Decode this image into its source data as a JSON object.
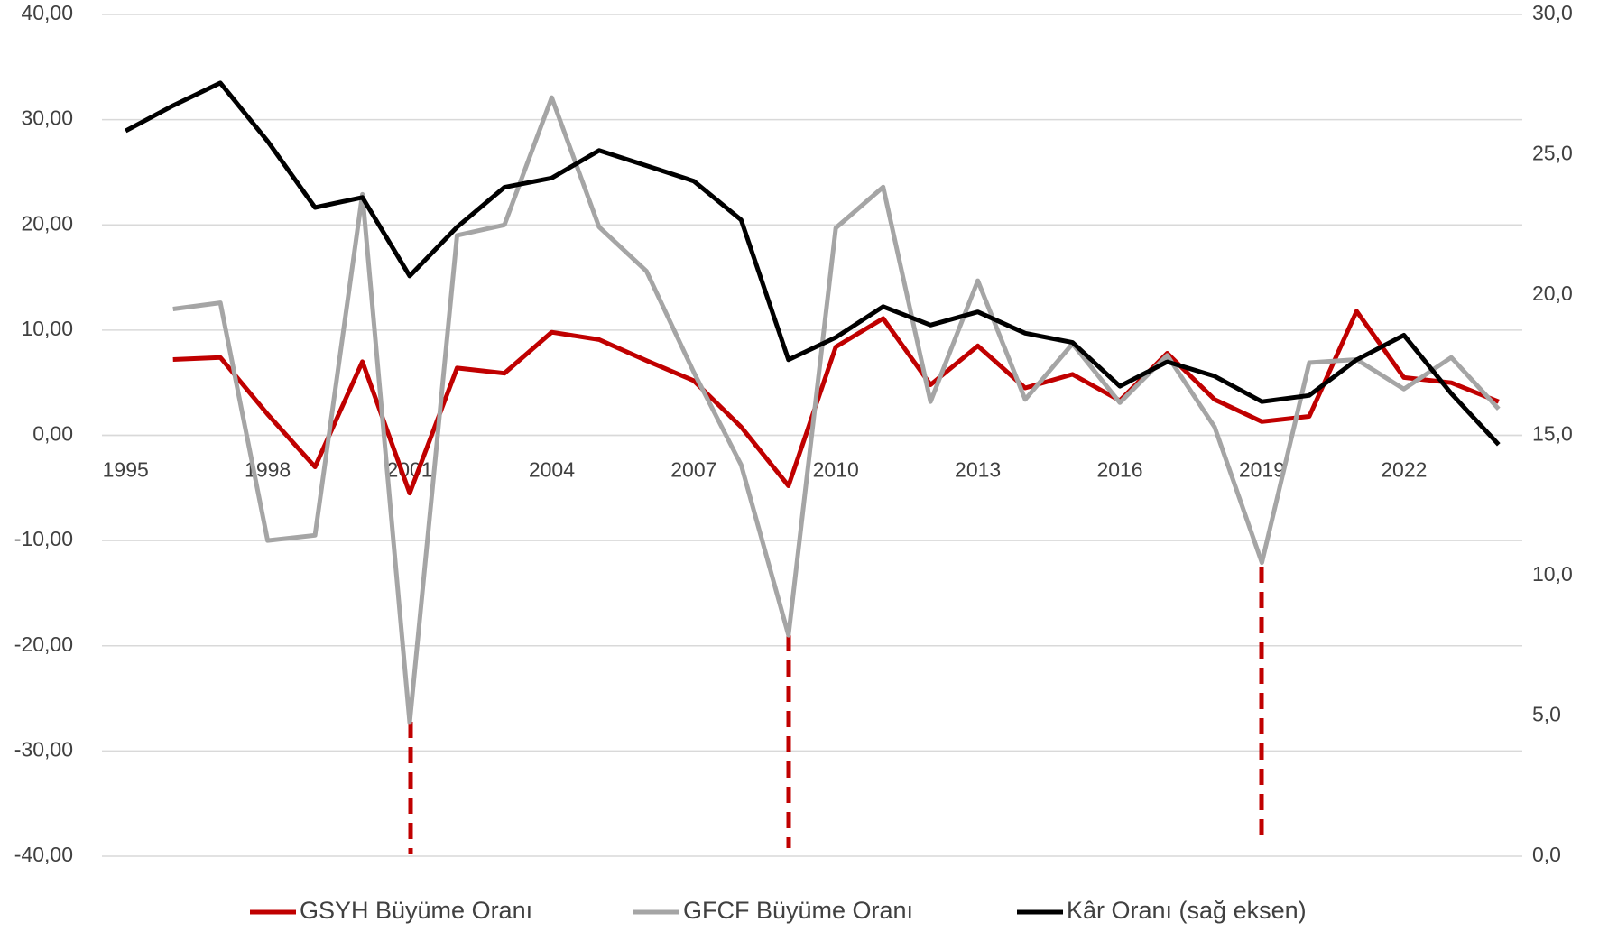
{
  "chart_data": {
    "type": "line",
    "categories": [
      "1995",
      null,
      null,
      "1998",
      null,
      null,
      "2001",
      null,
      null,
      "2004",
      null,
      null,
      "2007",
      null,
      null,
      "2010",
      null,
      null,
      "2013",
      null,
      null,
      "2016",
      null,
      null,
      "2019",
      null,
      null,
      "2022",
      null,
      null
    ],
    "series": [
      {
        "name": "GSYH Büyüme Oranı",
        "color": "#c00000",
        "values": [
          null,
          7.2,
          7.4,
          2.0,
          -3.0,
          7.0,
          -5.5,
          6.4,
          5.9,
          9.8,
          9.1,
          7.1,
          5.2,
          0.8,
          -4.8,
          8.4,
          11.1,
          4.8,
          8.5,
          4.5,
          5.8,
          3.3,
          7.8,
          3.4,
          1.3,
          1.8,
          11.8,
          5.5,
          5.0,
          3.2
        ]
      },
      {
        "name": "GFCF Büyüme Oranı",
        "color": "#a5a5a5",
        "values": [
          null,
          12.0,
          12.6,
          -10.0,
          -9.5,
          22.9,
          -27.3,
          19.0,
          20.0,
          32.1,
          19.8,
          15.6,
          6.0,
          -2.8,
          -19.0,
          19.7,
          23.6,
          3.2,
          14.7,
          3.4,
          8.7,
          3.1,
          7.6,
          0.8,
          -12.1,
          6.9,
          7.2,
          4.4,
          7.4,
          2.5
        ]
      },
      {
        "name": "Kâr Oranı (sağ eksen)",
        "color": "#000000",
        "axis": "y2",
        "values": [
          25.85,
          26.75,
          27.56,
          25.48,
          23.12,
          23.48,
          20.68,
          22.42,
          23.84,
          24.17,
          25.15,
          24.61,
          24.06,
          22.68,
          17.69,
          18.49,
          19.59,
          18.93,
          19.4,
          18.64,
          18.31,
          16.75,
          17.62,
          17.11,
          16.2,
          16.42,
          17.69,
          18.57,
          16.49,
          14.67
        ]
      }
    ],
    "ylim": [
      -40,
      40
    ],
    "yticks": [
      {
        "value": -40,
        "label": "-40,00"
      },
      {
        "value": -30,
        "label": "-30,00"
      },
      {
        "value": -20,
        "label": "-20,00"
      },
      {
        "value": -10,
        "label": "-10,00"
      },
      {
        "value": 0,
        "label": "0,00"
      },
      {
        "value": 10,
        "label": "10,00"
      },
      {
        "value": 20,
        "label": "20,00"
      },
      {
        "value": 30,
        "label": "30,00"
      },
      {
        "value": 40,
        "label": "40,00"
      }
    ],
    "y2lim": [
      0,
      30
    ],
    "y2ticks": [
      {
        "value": 0,
        "label": "0,0"
      },
      {
        "value": 5,
        "label": "5,0"
      },
      {
        "value": 10,
        "label": "10,0"
      },
      {
        "value": 15,
        "label": "15,0"
      },
      {
        "value": 20,
        "label": "20,0"
      },
      {
        "value": 25,
        "label": "25,0"
      },
      {
        "value": 30,
        "label": "30,0"
      }
    ],
    "grid": true,
    "legend": "bottom"
  }
}
